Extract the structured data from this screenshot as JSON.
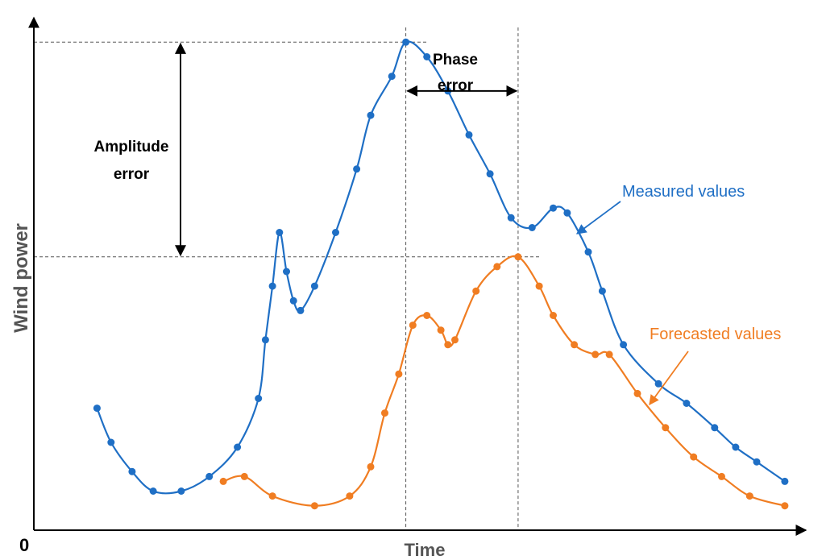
{
  "chart_data": {
    "type": "line",
    "title": "",
    "xlabel": "Time",
    "ylabel": "Wind power",
    "origin_label": "0",
    "colors": {
      "measured": "#1f6fc5",
      "forecasted": "#f07d22",
      "axis": "#000000",
      "guides": "#555555"
    },
    "series": [
      {
        "name": "Measured values",
        "color": "#1f6fc5",
        "values": [
          [
            0.09,
            0.25
          ],
          [
            0.11,
            0.18
          ],
          [
            0.14,
            0.12
          ],
          [
            0.17,
            0.08
          ],
          [
            0.21,
            0.08
          ],
          [
            0.25,
            0.11
          ],
          [
            0.29,
            0.17
          ],
          [
            0.32,
            0.27
          ],
          [
            0.33,
            0.39
          ],
          [
            0.34,
            0.5
          ],
          [
            0.35,
            0.61
          ],
          [
            0.36,
            0.53
          ],
          [
            0.37,
            0.47
          ],
          [
            0.38,
            0.45
          ],
          [
            0.4,
            0.5
          ],
          [
            0.43,
            0.61
          ],
          [
            0.46,
            0.74
          ],
          [
            0.48,
            0.85
          ],
          [
            0.51,
            0.93
          ],
          [
            0.53,
            1.0
          ],
          [
            0.56,
            0.97
          ],
          [
            0.59,
            0.9
          ],
          [
            0.62,
            0.81
          ],
          [
            0.65,
            0.73
          ],
          [
            0.68,
            0.64
          ],
          [
            0.71,
            0.62
          ],
          [
            0.74,
            0.66
          ],
          [
            0.76,
            0.65
          ],
          [
            0.79,
            0.57
          ],
          [
            0.81,
            0.49
          ],
          [
            0.84,
            0.38
          ],
          [
            0.89,
            0.3
          ],
          [
            0.93,
            0.26
          ],
          [
            0.97,
            0.21
          ],
          [
            1.0,
            0.17
          ],
          [
            1.03,
            0.14
          ],
          [
            1.07,
            0.1
          ]
        ]
      },
      {
        "name": "Forecasted values",
        "color": "#f07d22",
        "values": [
          [
            0.27,
            0.1
          ],
          [
            0.3,
            0.11
          ],
          [
            0.34,
            0.07
          ],
          [
            0.4,
            0.05
          ],
          [
            0.45,
            0.07
          ],
          [
            0.48,
            0.13
          ],
          [
            0.5,
            0.24
          ],
          [
            0.52,
            0.32
          ],
          [
            0.54,
            0.42
          ],
          [
            0.56,
            0.44
          ],
          [
            0.58,
            0.41
          ],
          [
            0.59,
            0.38
          ],
          [
            0.6,
            0.39
          ],
          [
            0.63,
            0.49
          ],
          [
            0.66,
            0.54
          ],
          [
            0.69,
            0.56
          ],
          [
            0.72,
            0.5
          ],
          [
            0.74,
            0.44
          ],
          [
            0.77,
            0.38
          ],
          [
            0.8,
            0.36
          ],
          [
            0.82,
            0.36
          ],
          [
            0.86,
            0.28
          ],
          [
            0.9,
            0.21
          ],
          [
            0.94,
            0.15
          ],
          [
            0.98,
            0.11
          ],
          [
            1.02,
            0.07
          ],
          [
            1.07,
            0.05
          ]
        ]
      }
    ],
    "annotations": {
      "amplitude": {
        "line1": "Amplitude",
        "line2": "error",
        "from_y": 0.56,
        "to_y": 1.0
      },
      "phase": {
        "line1": "Phase",
        "line2": "error",
        "from_x": 0.53,
        "to_x": 0.69
      },
      "measured_label": "Measured values",
      "forecasted_label": "Forecasted values"
    },
    "xlim": [
      0,
      1.1
    ],
    "ylim": [
      0,
      1.05
    ],
    "grid": false,
    "legend": "inline-labels"
  }
}
